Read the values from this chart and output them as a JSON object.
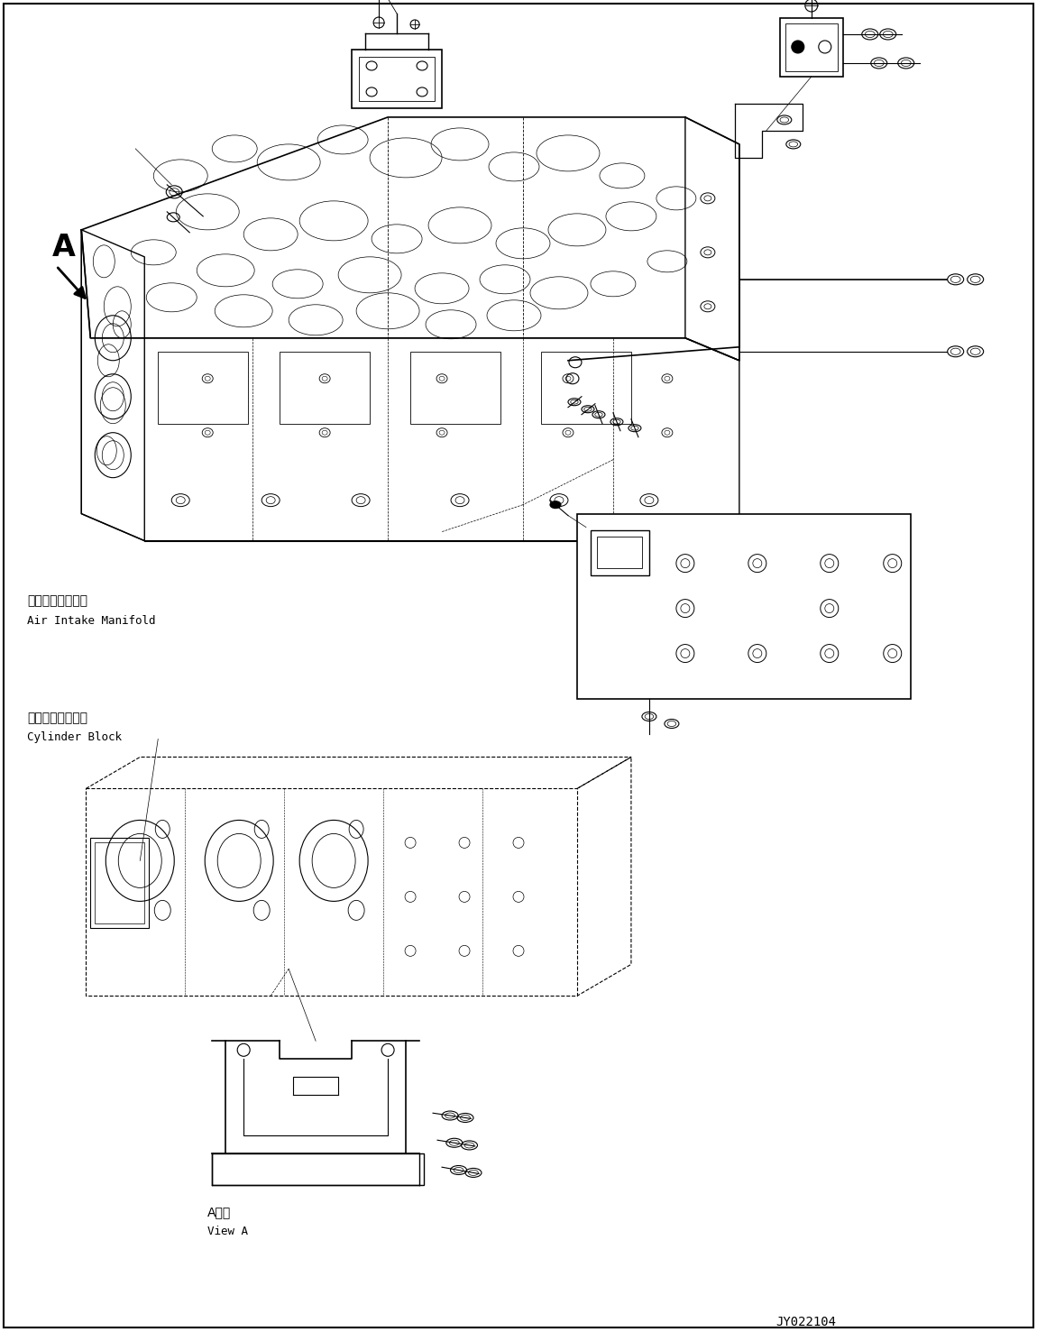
{
  "figure_width": 11.5,
  "figure_height": 14.77,
  "dpi": 100,
  "bg_color": "#ffffff",
  "line_color": "#000000",
  "line_width": 0.8,
  "label_air_intake_jp": "吸気マニホールド",
  "label_air_intake_en": "Air Intake Manifold",
  "label_cylinder_jp": "シリンダブロック",
  "label_cylinder_en": "Cylinder Block",
  "label_view_jp": "A　視",
  "label_view_en": "View A",
  "label_A": "A",
  "part_number": "JY022104",
  "font_size_label": 9,
  "font_size_part": 9,
  "font_family": "monospace"
}
